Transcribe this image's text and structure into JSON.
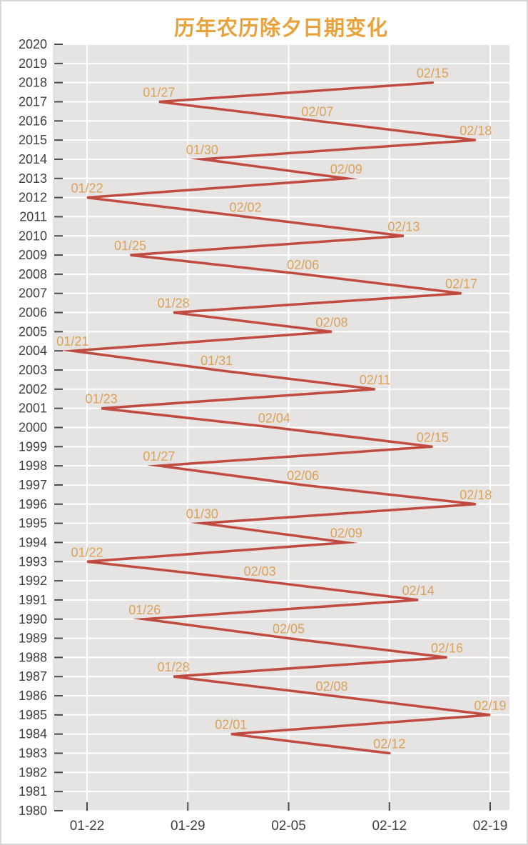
{
  "chart_data": {
    "type": "line",
    "title": "历年农历除夕日期变化",
    "xlabel": "",
    "ylabel": "",
    "legend": "none",
    "grid": "on",
    "x_ticks": [
      "01-22",
      "01-29",
      "02-05",
      "02-12",
      "02-19"
    ],
    "y_ticks": [
      2020,
      2019,
      2018,
      2017,
      2016,
      2015,
      2014,
      2013,
      2012,
      2011,
      2010,
      2009,
      2008,
      2007,
      2006,
      2005,
      2004,
      2003,
      2002,
      2001,
      2000,
      1999,
      1998,
      1997,
      1996,
      1995,
      1994,
      1993,
      1992,
      1991,
      1990,
      1989,
      1988,
      1987,
      1986,
      1985,
      1984,
      1983,
      1982,
      1981,
      1980
    ],
    "ylim": [
      1980,
      2020
    ],
    "points": [
      {
        "year": 2018,
        "date": "02/15"
      },
      {
        "year": 2017,
        "date": "01/27"
      },
      {
        "year": 2016,
        "date": "02/07"
      },
      {
        "year": 2015,
        "date": "02/18"
      },
      {
        "year": 2014,
        "date": "01/30"
      },
      {
        "year": 2013,
        "date": "02/09"
      },
      {
        "year": 2012,
        "date": "01/22"
      },
      {
        "year": 2011,
        "date": "02/02"
      },
      {
        "year": 2010,
        "date": "02/13"
      },
      {
        "year": 2009,
        "date": "01/25"
      },
      {
        "year": 2008,
        "date": "02/06"
      },
      {
        "year": 2007,
        "date": "02/17"
      },
      {
        "year": 2006,
        "date": "01/28"
      },
      {
        "year": 2005,
        "date": "02/08"
      },
      {
        "year": 2004,
        "date": "01/21"
      },
      {
        "year": 2003,
        "date": "01/31"
      },
      {
        "year": 2002,
        "date": "02/11"
      },
      {
        "year": 2001,
        "date": "01/23"
      },
      {
        "year": 2000,
        "date": "02/04"
      },
      {
        "year": 1999,
        "date": "02/15"
      },
      {
        "year": 1998,
        "date": "01/27"
      },
      {
        "year": 1997,
        "date": "02/06"
      },
      {
        "year": 1996,
        "date": "02/18"
      },
      {
        "year": 1995,
        "date": "01/30"
      },
      {
        "year": 1994,
        "date": "02/09"
      },
      {
        "year": 1993,
        "date": "01/22"
      },
      {
        "year": 1992,
        "date": "02/03"
      },
      {
        "year": 1991,
        "date": "02/14"
      },
      {
        "year": 1990,
        "date": "01/26"
      },
      {
        "year": 1989,
        "date": "02/05"
      },
      {
        "year": 1988,
        "date": "02/16"
      },
      {
        "year": 1987,
        "date": "01/28"
      },
      {
        "year": 1986,
        "date": "02/08"
      },
      {
        "year": 1985,
        "date": "02/19"
      },
      {
        "year": 1984,
        "date": "02/01"
      },
      {
        "year": 1983,
        "date": "02/12"
      }
    ],
    "colors": {
      "title": "#e7a23c",
      "series_line": "#c04b40",
      "point_label": "#dca258",
      "axis_text": "#3f3f3f",
      "tick_mark": "#4a4a4a",
      "plot_background": "#e5e4e2",
      "gridline": "#ffffff",
      "page_border": "#d8d8d8"
    }
  }
}
